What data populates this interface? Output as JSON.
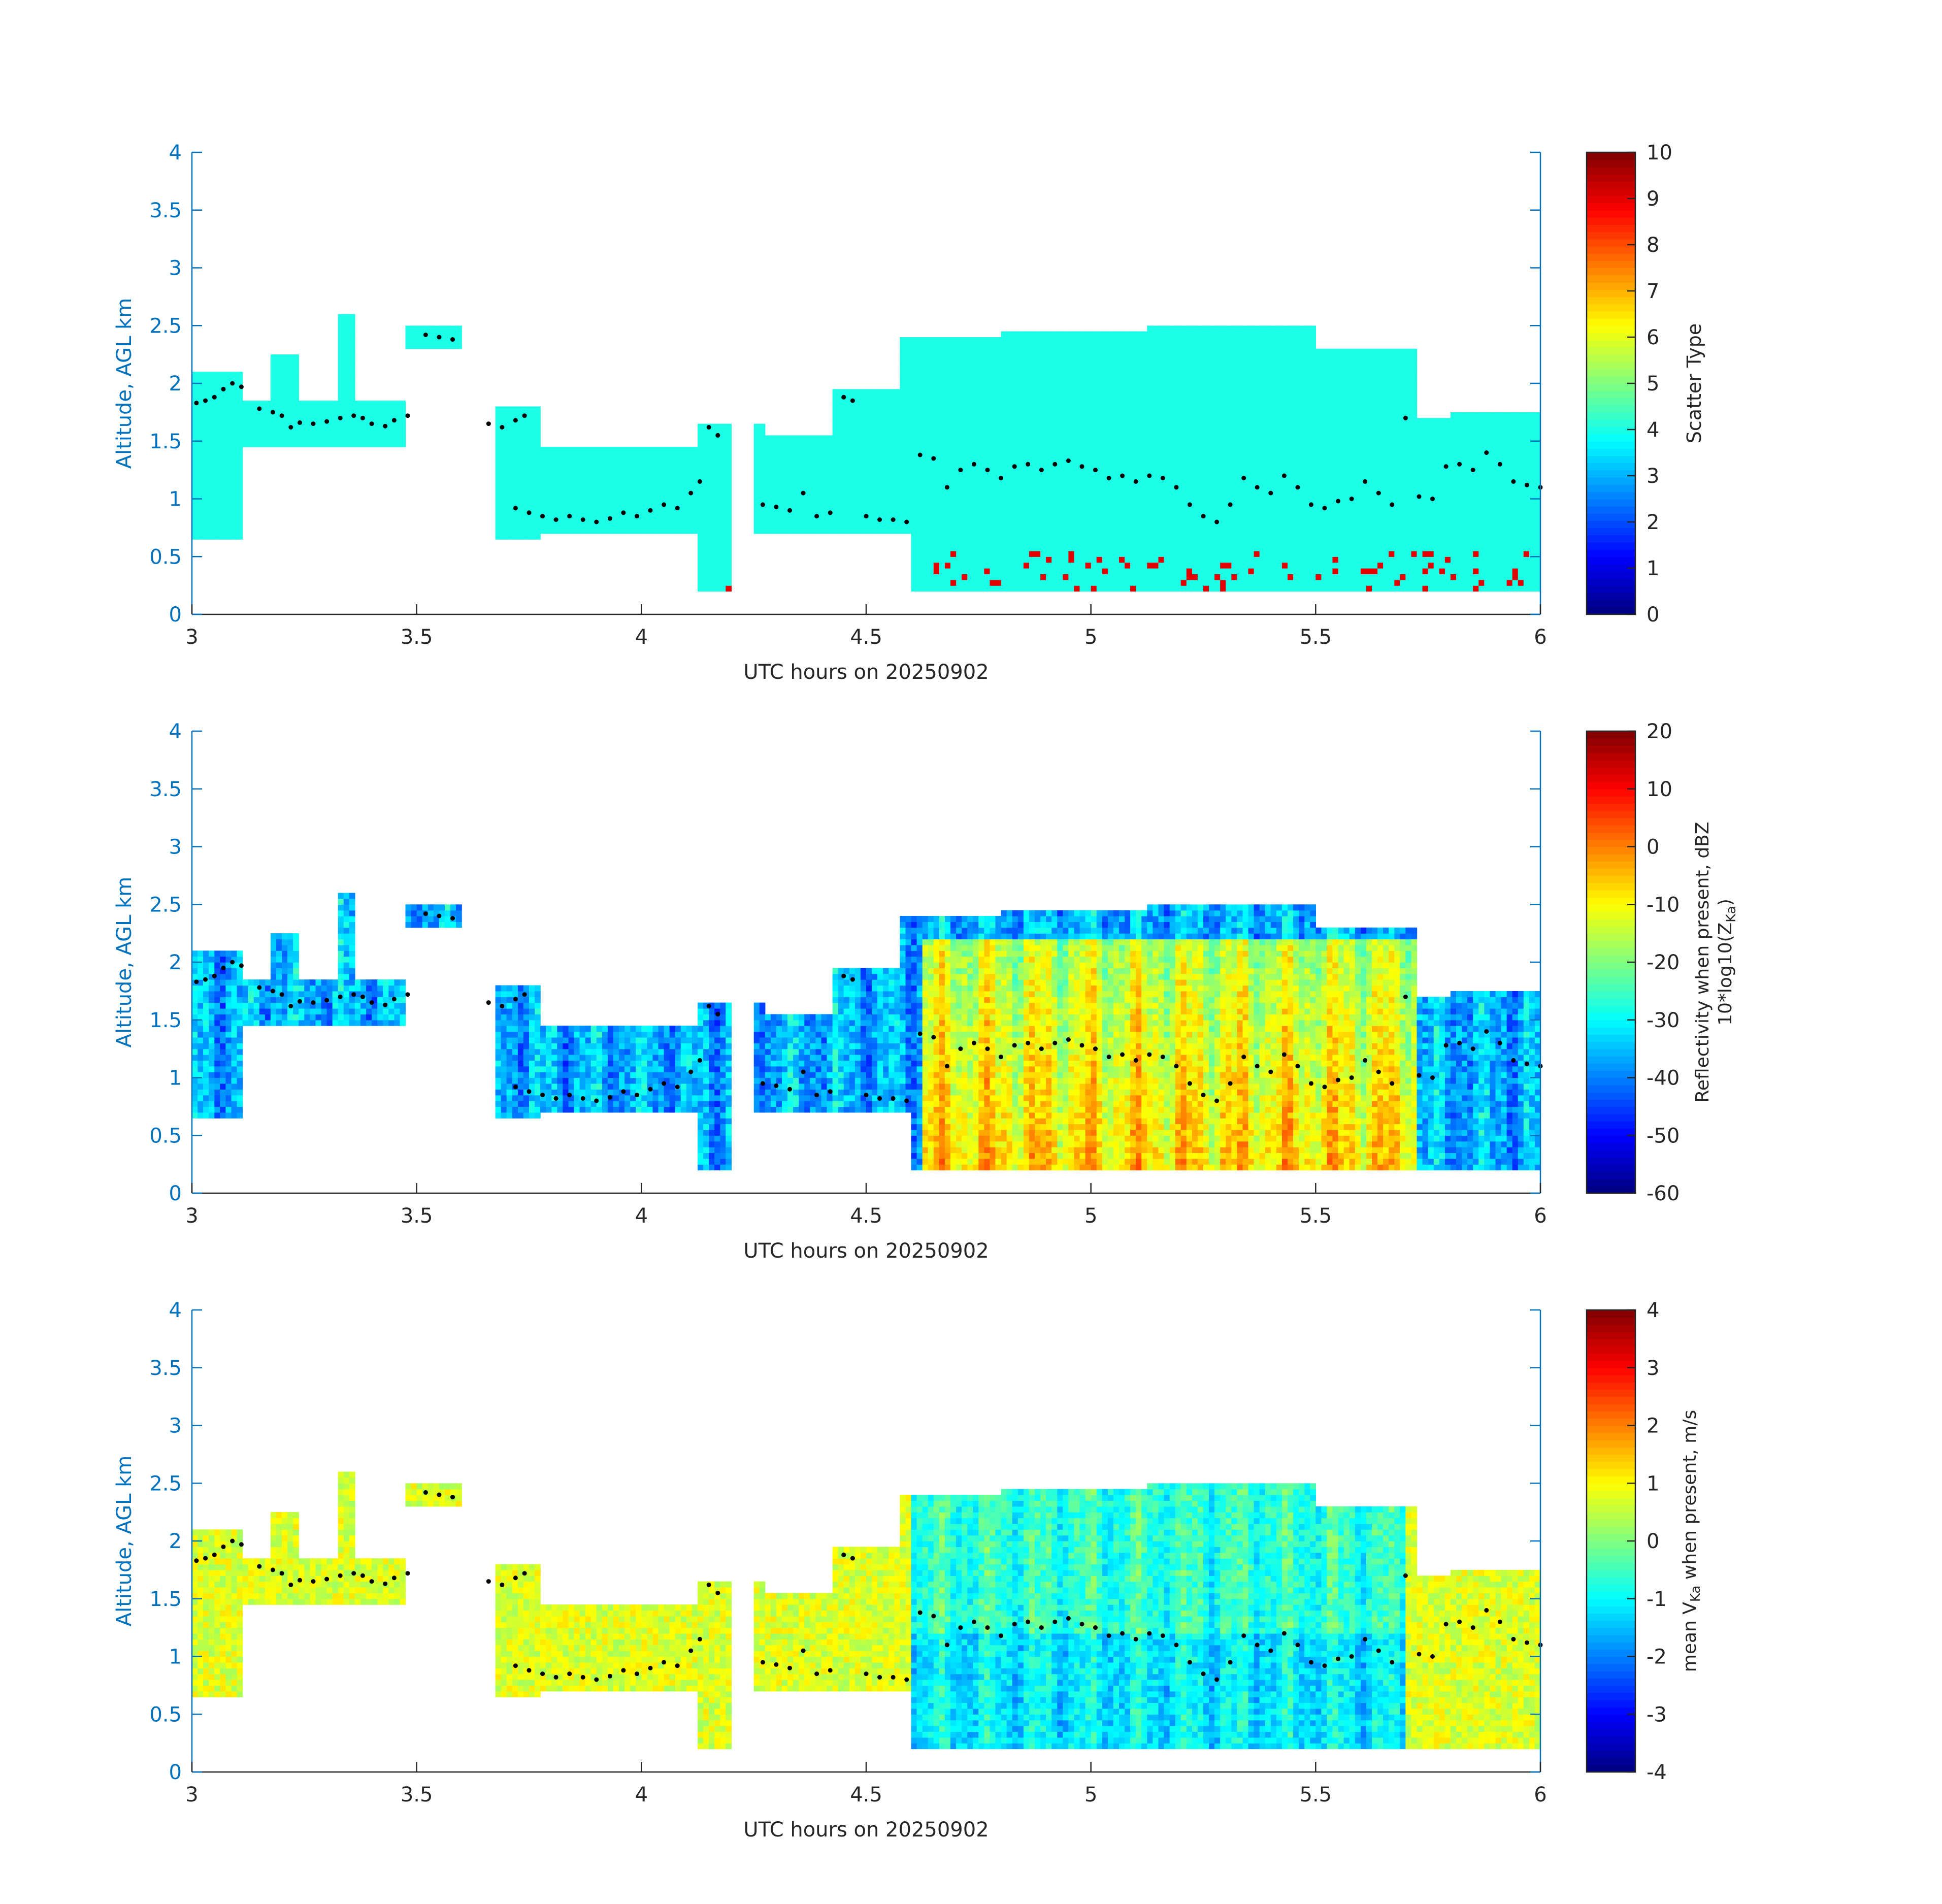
{
  "figure": {
    "background": "#ffffff"
  },
  "colors": {
    "axis_left": "#0072bd",
    "axis_bottom": "#262626",
    "text": "#262626",
    "dot": "#000000"
  },
  "chart_data": [
    {
      "type": "heatmap",
      "title": "",
      "xlabel": "UTC hours on 20250902",
      "ylabel": "Altitude, AGL km",
      "xlim": [
        3,
        6
      ],
      "ylim": [
        0,
        4
      ],
      "xticks": [
        "3",
        "3.5",
        "4",
        "4.5",
        "5",
        "5.5",
        "6"
      ],
      "yticks": [
        "0",
        "0.5",
        "1",
        "1.5",
        "2",
        "2.5",
        "3",
        "3.5",
        "4"
      ],
      "colorbar": {
        "label": "Scatter Type",
        "ticks": [
          "0",
          "1",
          "2",
          "3",
          "4",
          "5",
          "6",
          "7",
          "8",
          "9",
          "10"
        ],
        "range": [
          0,
          10
        ]
      },
      "notes": "Scatter Type: value ~4 (cloud, cyan) dominant; ~9 (orange-red) near surface."
    },
    {
      "type": "heatmap",
      "title": "",
      "xlabel": "UTC hours on 20250902",
      "ylabel": "Altitude, AGL km",
      "xlim": [
        3,
        6
      ],
      "ylim": [
        0,
        4
      ],
      "xticks": [
        "3",
        "3.5",
        "4",
        "4.5",
        "5",
        "5.5",
        "6"
      ],
      "yticks": [
        "0",
        "0.5",
        "1",
        "1.5",
        "2",
        "2.5",
        "3",
        "3.5",
        "4"
      ],
      "colorbar": {
        "label": "Reflectivity when present, dBZ",
        "label2": "10*log10(Z",
        "label2_sub": "Ka",
        "label2_end": ")",
        "ticks": [
          "-60",
          "-50",
          "-40",
          "-30",
          "-20",
          "-10",
          "0",
          "10",
          "20"
        ],
        "range": [
          -60,
          20
        ]
      }
    },
    {
      "type": "heatmap",
      "title": "",
      "xlabel": "UTC hours on 20250902",
      "ylabel": "Altitude, AGL km",
      "xlim": [
        3,
        6
      ],
      "ylim": [
        0,
        4
      ],
      "xticks": [
        "3",
        "3.5",
        "4",
        "4.5",
        "5",
        "5.5",
        "6"
      ],
      "yticks": [
        "0",
        "0.5",
        "1",
        "1.5",
        "2",
        "2.5",
        "3",
        "3.5",
        "4"
      ],
      "colorbar": {
        "label_pre": "mean V",
        "label_sub": "Ka",
        "label_post": " when present, m/s",
        "ticks": [
          "-4",
          "-3",
          "-2",
          "-1",
          "0",
          "1",
          "2",
          "3",
          "4"
        ],
        "range": [
          -4,
          4
        ]
      }
    }
  ],
  "cloud_base": [
    [
      3.01,
      1.83
    ],
    [
      3.03,
      1.85
    ],
    [
      3.05,
      1.88
    ],
    [
      3.07,
      1.95
    ],
    [
      3.09,
      2.0
    ],
    [
      3.11,
      1.97
    ],
    [
      3.15,
      1.78
    ],
    [
      3.18,
      1.75
    ],
    [
      3.2,
      1.72
    ],
    [
      3.22,
      1.62
    ],
    [
      3.24,
      1.66
    ],
    [
      3.27,
      1.65
    ],
    [
      3.3,
      1.67
    ],
    [
      3.33,
      1.7
    ],
    [
      3.36,
      1.72
    ],
    [
      3.38,
      1.7
    ],
    [
      3.4,
      1.65
    ],
    [
      3.43,
      1.63
    ],
    [
      3.45,
      1.68
    ],
    [
      3.48,
      1.72
    ],
    [
      3.52,
      2.42
    ],
    [
      3.55,
      2.4
    ],
    [
      3.58,
      2.38
    ],
    [
      3.66,
      1.65
    ],
    [
      3.69,
      1.62
    ],
    [
      3.72,
      1.68
    ],
    [
      3.74,
      1.72
    ],
    [
      3.72,
      0.92
    ],
    [
      3.75,
      0.88
    ],
    [
      3.78,
      0.85
    ],
    [
      3.81,
      0.82
    ],
    [
      3.84,
      0.85
    ],
    [
      3.87,
      0.82
    ],
    [
      3.9,
      0.8
    ],
    [
      3.93,
      0.83
    ],
    [
      3.96,
      0.88
    ],
    [
      3.99,
      0.85
    ],
    [
      4.02,
      0.9
    ],
    [
      4.05,
      0.95
    ],
    [
      4.08,
      0.92
    ],
    [
      4.11,
      1.05
    ],
    [
      4.13,
      1.15
    ],
    [
      4.15,
      1.62
    ],
    [
      4.17,
      1.55
    ],
    [
      4.27,
      0.95
    ],
    [
      4.3,
      0.93
    ],
    [
      4.33,
      0.9
    ],
    [
      4.36,
      1.05
    ],
    [
      4.39,
      0.85
    ],
    [
      4.42,
      0.88
    ],
    [
      4.45,
      1.88
    ],
    [
      4.47,
      1.85
    ],
    [
      4.5,
      0.85
    ],
    [
      4.53,
      0.82
    ],
    [
      4.56,
      0.82
    ],
    [
      4.59,
      0.8
    ],
    [
      4.62,
      1.38
    ],
    [
      4.65,
      1.35
    ],
    [
      4.68,
      1.1
    ],
    [
      4.71,
      1.25
    ],
    [
      4.74,
      1.3
    ],
    [
      4.77,
      1.25
    ],
    [
      4.8,
      1.18
    ],
    [
      4.83,
      1.28
    ],
    [
      4.86,
      1.3
    ],
    [
      4.89,
      1.25
    ],
    [
      4.92,
      1.3
    ],
    [
      4.95,
      1.33
    ],
    [
      4.98,
      1.28
    ],
    [
      5.01,
      1.25
    ],
    [
      5.04,
      1.18
    ],
    [
      5.07,
      1.2
    ],
    [
      5.1,
      1.15
    ],
    [
      5.13,
      1.2
    ],
    [
      5.16,
      1.18
    ],
    [
      5.19,
      1.1
    ],
    [
      5.22,
      0.95
    ],
    [
      5.25,
      0.85
    ],
    [
      5.28,
      0.8
    ],
    [
      5.31,
      0.95
    ],
    [
      5.34,
      1.18
    ],
    [
      5.37,
      1.1
    ],
    [
      5.4,
      1.05
    ],
    [
      5.43,
      1.2
    ],
    [
      5.46,
      1.1
    ],
    [
      5.49,
      0.95
    ],
    [
      5.52,
      0.92
    ],
    [
      5.55,
      0.98
    ],
    [
      5.58,
      1.0
    ],
    [
      5.61,
      1.15
    ],
    [
      5.64,
      1.05
    ],
    [
      5.67,
      0.95
    ],
    [
      5.7,
      1.7
    ],
    [
      5.73,
      1.02
    ],
    [
      5.76,
      1.0
    ],
    [
      5.79,
      1.28
    ],
    [
      5.82,
      1.3
    ],
    [
      5.85,
      1.25
    ],
    [
      5.88,
      1.4
    ],
    [
      5.91,
      1.3
    ],
    [
      5.94,
      1.15
    ],
    [
      5.97,
      1.12
    ],
    [
      6.0,
      1.1
    ]
  ]
}
